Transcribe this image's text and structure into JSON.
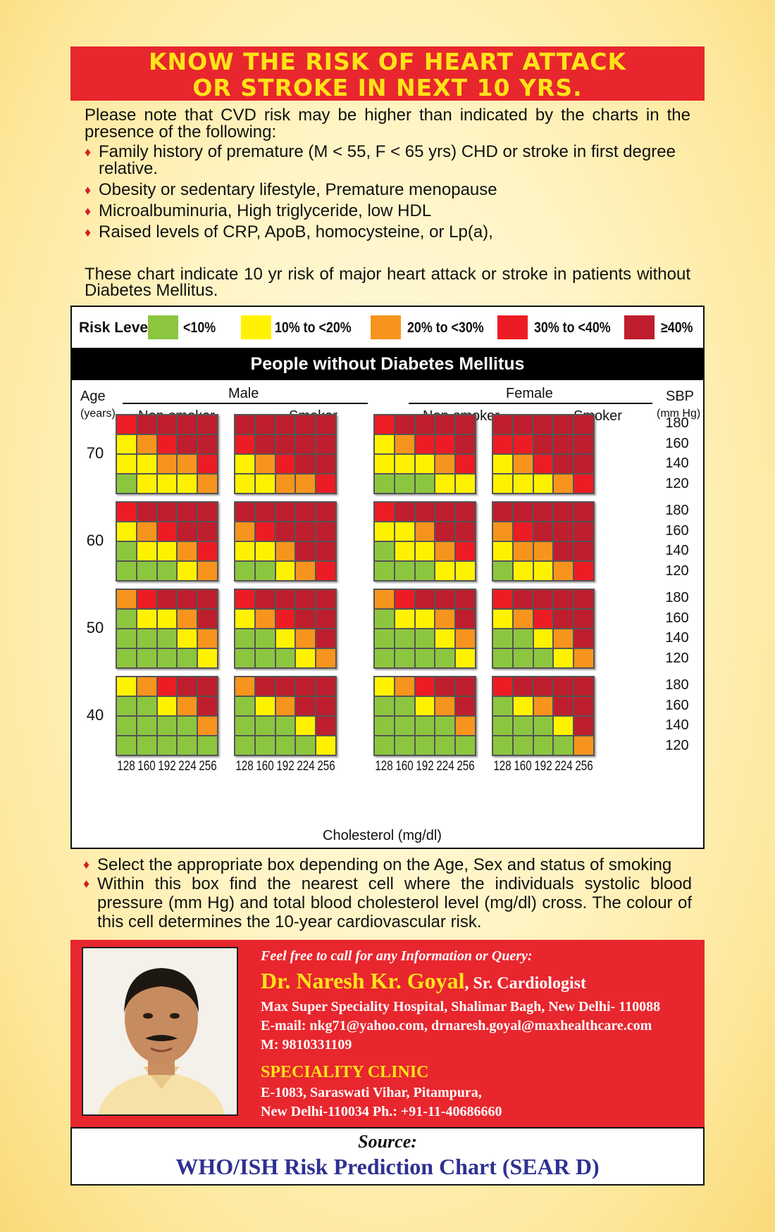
{
  "banner": {
    "line1": "KNOW THE RISK OF HEART ATTACK",
    "line2": "OR STROKE IN NEXT 10 YRS."
  },
  "intro": {
    "lead": "Please note that CVD risk may be higher than indicated by the charts in the presence of the following:",
    "bullets": [
      "Family history of premature (M < 55, F < 65 yrs) CHD or stroke in first degree relative.",
      "Obesity or sedentary lifestyle, Premature menopause",
      "Microalbuminuria, High triglyceride, low HDL",
      "Raised levels of CRP, ApoB, homocysteine, or Lp(a),"
    ],
    "note": "These chart indicate 10 yr risk of major heart attack or stroke in patients without Diabetes Mellitus."
  },
  "legend": {
    "label": "Risk Level",
    "items": [
      {
        "text": "<10%",
        "color": "#8cc63f"
      },
      {
        "text": "10% to <20%",
        "color": "#fff200"
      },
      {
        "text": "20% to <30%",
        "color": "#f7941d"
      },
      {
        "text": "30% to <40%",
        "color": "#ed1c24"
      },
      {
        "text": "≥40%",
        "color": "#be1e2d"
      }
    ]
  },
  "chart_data": {
    "type": "heatmap",
    "title": "People without Diabetes Mellitus",
    "age_axis": {
      "label": "Age",
      "unit": "(years)",
      "values": [
        70,
        60,
        50,
        40
      ]
    },
    "sbp_axis": {
      "label": "SBP",
      "unit": "(mm Hg)",
      "values": [
        180,
        160,
        140,
        120
      ]
    },
    "cholesterol_axis": {
      "label": "Cholesterol (mg/dl)",
      "values": [
        128,
        160,
        192,
        224,
        256
      ]
    },
    "sex_headers": [
      "Male",
      "Female"
    ],
    "smoking_headers": [
      "Non-smoker",
      "Smoker",
      "Non-smoker",
      "Smoker"
    ],
    "risk_level_key": {
      "1": "<10%",
      "2": "10% to <20%",
      "3": "20% to <30%",
      "4": "30% to <40%",
      "5": "≥40%"
    },
    "panels": [
      {
        "sex": "Male",
        "smoking": "Non-smoker",
        "ages": [
          [
            [
              4,
              5,
              5,
              5,
              5
            ],
            [
              2,
              3,
              4,
              5,
              5
            ],
            [
              2,
              2,
              3,
              3,
              4
            ],
            [
              1,
              2,
              2,
              2,
              3
            ]
          ],
          [
            [
              4,
              5,
              5,
              5,
              5
            ],
            [
              2,
              3,
              4,
              5,
              5
            ],
            [
              1,
              2,
              2,
              3,
              4
            ],
            [
              1,
              1,
              1,
              2,
              3
            ]
          ],
          [
            [
              3,
              4,
              5,
              5,
              5
            ],
            [
              1,
              2,
              2,
              3,
              5
            ],
            [
              1,
              1,
              1,
              2,
              3
            ],
            [
              1,
              1,
              1,
              1,
              2
            ]
          ],
          [
            [
              2,
              3,
              4,
              5,
              5
            ],
            [
              1,
              1,
              2,
              3,
              5
            ],
            [
              1,
              1,
              1,
              1,
              3
            ],
            [
              1,
              1,
              1,
              1,
              1
            ]
          ]
        ]
      },
      {
        "sex": "Male",
        "smoking": "Smoker",
        "ages": [
          [
            [
              5,
              5,
              5,
              5,
              5
            ],
            [
              4,
              5,
              5,
              5,
              5
            ],
            [
              2,
              3,
              4,
              5,
              5
            ],
            [
              2,
              2,
              3,
              3,
              4
            ]
          ],
          [
            [
              5,
              5,
              5,
              5,
              5
            ],
            [
              3,
              4,
              5,
              5,
              5
            ],
            [
              2,
              2,
              3,
              5,
              5
            ],
            [
              1,
              1,
              2,
              3,
              4
            ]
          ],
          [
            [
              4,
              5,
              5,
              5,
              5
            ],
            [
              2,
              3,
              4,
              5,
              5
            ],
            [
              1,
              1,
              2,
              3,
              5
            ],
            [
              1,
              1,
              1,
              2,
              3
            ]
          ],
          [
            [
              3,
              5,
              5,
              5,
              5
            ],
            [
              1,
              2,
              3,
              5,
              5
            ],
            [
              1,
              1,
              1,
              2,
              5
            ],
            [
              1,
              1,
              1,
              1,
              2
            ]
          ]
        ]
      },
      {
        "sex": "Female",
        "smoking": "Non-smoker",
        "ages": [
          [
            [
              4,
              5,
              5,
              5,
              5
            ],
            [
              2,
              3,
              4,
              4,
              5
            ],
            [
              2,
              2,
              2,
              3,
              4
            ],
            [
              1,
              1,
              1,
              2,
              2
            ]
          ],
          [
            [
              4,
              5,
              5,
              5,
              5
            ],
            [
              2,
              2,
              3,
              5,
              5
            ],
            [
              1,
              2,
              2,
              3,
              4
            ],
            [
              1,
              1,
              1,
              2,
              2
            ]
          ],
          [
            [
              3,
              4,
              5,
              5,
              5
            ],
            [
              1,
              2,
              2,
              3,
              5
            ],
            [
              1,
              1,
              1,
              2,
              3
            ],
            [
              1,
              1,
              1,
              1,
              2
            ]
          ],
          [
            [
              2,
              3,
              4,
              5,
              5
            ],
            [
              1,
              1,
              2,
              3,
              5
            ],
            [
              1,
              1,
              1,
              1,
              3
            ],
            [
              1,
              1,
              1,
              1,
              1
            ]
          ]
        ]
      },
      {
        "sex": "Female",
        "smoking": "Smoker",
        "ages": [
          [
            [
              5,
              5,
              5,
              5,
              5
            ],
            [
              4,
              4,
              5,
              5,
              5
            ],
            [
              2,
              3,
              4,
              5,
              5
            ],
            [
              2,
              2,
              2,
              3,
              4
            ]
          ],
          [
            [
              5,
              5,
              5,
              5,
              5
            ],
            [
              3,
              4,
              5,
              5,
              5
            ],
            [
              2,
              3,
              3,
              5,
              5
            ],
            [
              1,
              2,
              2,
              3,
              4
            ]
          ],
          [
            [
              4,
              5,
              5,
              5,
              5
            ],
            [
              2,
              3,
              4,
              5,
              5
            ],
            [
              1,
              1,
              2,
              3,
              5
            ],
            [
              1,
              1,
              1,
              2,
              3
            ]
          ],
          [
            [
              4,
              5,
              5,
              5,
              5
            ],
            [
              1,
              2,
              3,
              5,
              5
            ],
            [
              1,
              1,
              1,
              2,
              5
            ],
            [
              1,
              1,
              1,
              1,
              3
            ]
          ]
        ]
      }
    ]
  },
  "instructions": [
    "Select the appropriate box depending on the Age, Sex and status of smoking",
    "Within this box find the nearest cell where the individuals systolic blood pressure (mm Hg) and total blood cholesterol level (mg/dl) cross. The colour of this cell determines the 10-year cardiovascular risk."
  ],
  "contact": {
    "invite": "Feel free to call for any Information or Query:",
    "name": "Dr. Naresh Kr. Goyal",
    "title": ", Sr. Cardiologist",
    "hospital": "Max Super Speciality Hospital, Shalimar Bagh, New Delhi- 110088",
    "email": "E-mail: nkg71@yahoo.com, drnaresh.goyal@maxhealthcare.com",
    "mobile": "M: 9810331109",
    "clinic_heading": "SPECIALITY CLINIC",
    "clinic_address1": "E-1083, Saraswati Vihar, Pitampura,",
    "clinic_address2": "New Delhi-110034 Ph.: +91-11-40686660"
  },
  "source": {
    "label": "Source:",
    "text": "WHO/ISH Risk Prediction Chart (SEAR D)"
  }
}
